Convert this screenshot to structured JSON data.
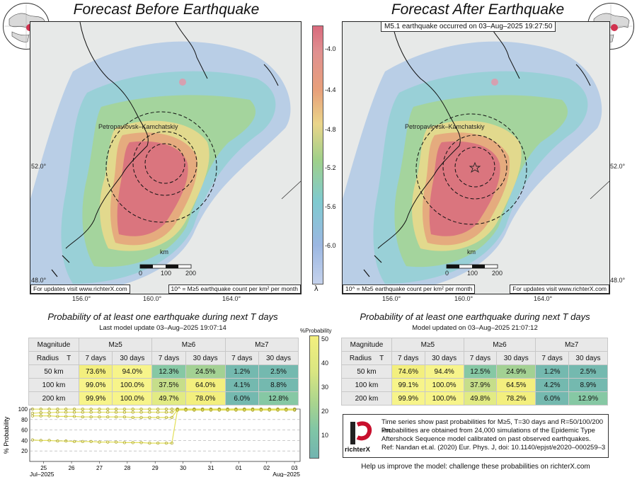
{
  "left_title": "Forecast Before Earthquake",
  "right_title": "Forecast After Earthquake",
  "banner": "M5.1 earthquake occurred on 03–Aug–2025 19:27:50",
  "city": "Petropavlovsk–Kamchatskiy",
  "lat_labels": [
    "52.0°",
    "48.0°"
  ],
  "lon_labels": [
    "156.0°",
    "160.0°",
    "164.0°"
  ],
  "scale": {
    "unit": "km",
    "ticks": [
      "0",
      "100",
      "200"
    ]
  },
  "footer_url": "For updates visit www.richterX.com",
  "footer_formula": "10^ = M≥5 earthquake count per km² per month",
  "colorbar": {
    "ticks": [
      "-4.0",
      "-4.4",
      "-4.8",
      "-5.2",
      "-5.6",
      "-6.0"
    ],
    "symbol": "λ",
    "colors": [
      "#d96a7d",
      "#e8a07a",
      "#ead58a",
      "#9fd08a",
      "#7fcad0",
      "#9bb7e2"
    ]
  },
  "left_table": {
    "title": "Probability of at least one earthquake during next T days",
    "subtitle": "Last model update 03–Aug–2025 19:07:14",
    "mag_header": "Magnitude",
    "radius_header": "Radius",
    "t_header": "T",
    "mags": [
      "M≥5",
      "M≥6",
      "M≥7"
    ],
    "periods": [
      "7 days",
      "30 days"
    ],
    "rows": [
      {
        "radius": "50 km",
        "values": [
          "73.6%",
          "94.0%",
          "12.3%",
          "24.5%",
          "1.2%",
          "2.5%"
        ]
      },
      {
        "radius": "100 km",
        "values": [
          "99.0%",
          "100.0%",
          "37.5%",
          "64.0%",
          "4.1%",
          "8.8%"
        ]
      },
      {
        "radius": "200 km",
        "values": [
          "99.9%",
          "100.0%",
          "49.7%",
          "78.0%",
          "6.0%",
          "12.8%"
        ]
      }
    ]
  },
  "right_table": {
    "title": "Probability of at least one earthquake during next T days",
    "subtitle": "Model updated on 03–Aug–2025 21:07:12",
    "mag_header": "Magnitude",
    "radius_header": "Radius",
    "t_header": "T",
    "mags": [
      "M≥5",
      "M≥6",
      "M≥7"
    ],
    "periods": [
      "7 days",
      "30 days"
    ],
    "rows": [
      {
        "radius": "50 km",
        "values": [
          "74.6%",
          "94.4%",
          "12.5%",
          "24.9%",
          "1.2%",
          "2.5%"
        ]
      },
      {
        "radius": "100 km",
        "values": [
          "99.1%",
          "100.0%",
          "37.9%",
          "64.5%",
          "4.2%",
          "8.9%"
        ]
      },
      {
        "radius": "200 km",
        "values": [
          "99.9%",
          "100.0%",
          "49.8%",
          "78.2%",
          "6.0%",
          "12.9%"
        ]
      }
    ]
  },
  "table_colorbar": {
    "label": "%Probability",
    "ticks": [
      "50",
      "40",
      "30",
      "20",
      "10"
    ]
  },
  "info": {
    "lines": [
      "Time series show past probabilities for M≥5, T=30 days and R=50/100/200 km.",
      "Probabilities are obtained from 24,000 simulations of the Epidemic Type",
      "Aftershock Sequence model calibrated on past observed earthquakes.",
      "Ref: Nandan et.al. (2020) Eur. Phys. J, doi: 10.1140/epjst/e2020–000259–3"
    ],
    "logo_text": "richterX"
  },
  "help_text": "Help us improve the model: challenge these probabilities on richterX.com",
  "chart_data": {
    "type": "line",
    "ylabel": "% Probability",
    "x_tick_labels": [
      "25",
      "26",
      "27",
      "28",
      "29",
      "30",
      "31",
      "01",
      "02",
      "03"
    ],
    "x_month_labels": [
      "Jul–2025",
      "Aug–2025"
    ],
    "y_ticks": [
      "100",
      "80",
      "60",
      "40",
      "20"
    ],
    "ylim": [
      0,
      100
    ],
    "x": [
      24.6,
      24.9,
      25.2,
      25.5,
      25.8,
      26.1,
      26.4,
      26.7,
      27.0,
      27.3,
      27.6,
      27.9,
      28.2,
      28.5,
      28.8,
      29.1,
      29.4,
      29.6,
      29.8,
      30.1,
      30.4,
      30.7,
      31.0,
      31.3,
      31.6,
      31.9,
      32.2,
      32.5,
      32.8,
      33.1,
      33.4,
      33.7,
      34.0
    ],
    "series": [
      {
        "values": [
          99.8,
          99.8,
          99.8,
          99.8,
          99.8,
          99.8,
          99.8,
          99.8,
          99.8,
          99.8,
          99.8,
          99.8,
          99.8,
          99.8,
          99.8,
          99.8,
          99.8,
          99.8,
          100,
          100,
          100,
          100,
          100,
          100,
          100,
          100,
          100,
          100,
          100,
          100,
          100,
          100,
          100
        ]
      },
      {
        "values": [
          92,
          93,
          93,
          94,
          94,
          94,
          94,
          94,
          94,
          94,
          94,
          94,
          94,
          94,
          94,
          94,
          94,
          94,
          100,
          100,
          100,
          100,
          100,
          100,
          100,
          100,
          100,
          100,
          100,
          100,
          100,
          100,
          100
        ]
      },
      {
        "values": [
          87,
          87,
          87,
          86,
          86,
          86,
          85,
          85,
          85,
          85,
          85,
          85,
          84,
          84,
          84,
          84,
          84,
          84,
          99,
          99,
          99,
          99,
          99,
          99,
          99,
          99,
          99,
          99,
          99,
          99,
          99,
          99,
          99
        ]
      },
      {
        "values": [
          41,
          40,
          40,
          39,
          39,
          38,
          38,
          38,
          37,
          37,
          37,
          36,
          36,
          36,
          35,
          35,
          35,
          35,
          98,
          98,
          98,
          98,
          98,
          98,
          98,
          98,
          98,
          98,
          98,
          98,
          98,
          98,
          98
        ]
      }
    ],
    "line_color": "#e3e05a",
    "grid": true
  }
}
